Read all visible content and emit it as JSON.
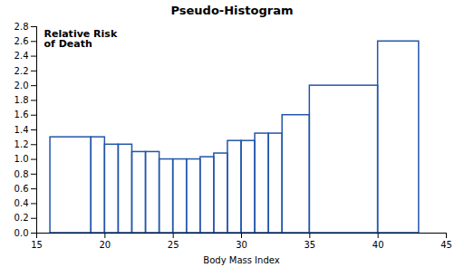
{
  "chart_data": {
    "type": "histogram",
    "title": "Pseudo-Histogram",
    "xlabel": "Body Mass Index",
    "ylabel": "Relative Risk\nof Death",
    "bins": [
      16,
      19,
      20,
      21,
      22,
      23,
      24,
      25,
      26,
      27,
      28,
      29,
      30,
      31,
      32,
      33,
      35,
      40,
      43
    ],
    "values": [
      1.3,
      1.3,
      1.2,
      1.2,
      1.1,
      1.1,
      1.0,
      1.0,
      1.0,
      1.03,
      1.08,
      1.25,
      1.25,
      1.35,
      1.35,
      1.6,
      2.0,
      2.6
    ],
    "color": "#2255AA",
    "xlim": [
      15,
      45
    ],
    "ylim": [
      0,
      2.8
    ],
    "xticks": [
      15,
      20,
      25,
      30,
      35,
      40,
      45
    ],
    "yticks": [
      {
        "value": 0,
        "label": "0.0"
      },
      0.2,
      0.4,
      0.6,
      0.8,
      {
        "value": 1,
        "label": "1.0"
      },
      1.2,
      1.4,
      1.6,
      1.8,
      {
        "value": 2,
        "label": "2.0"
      },
      2.2,
      2.4,
      2.6,
      2.8
    ],
    "grid": false
  }
}
